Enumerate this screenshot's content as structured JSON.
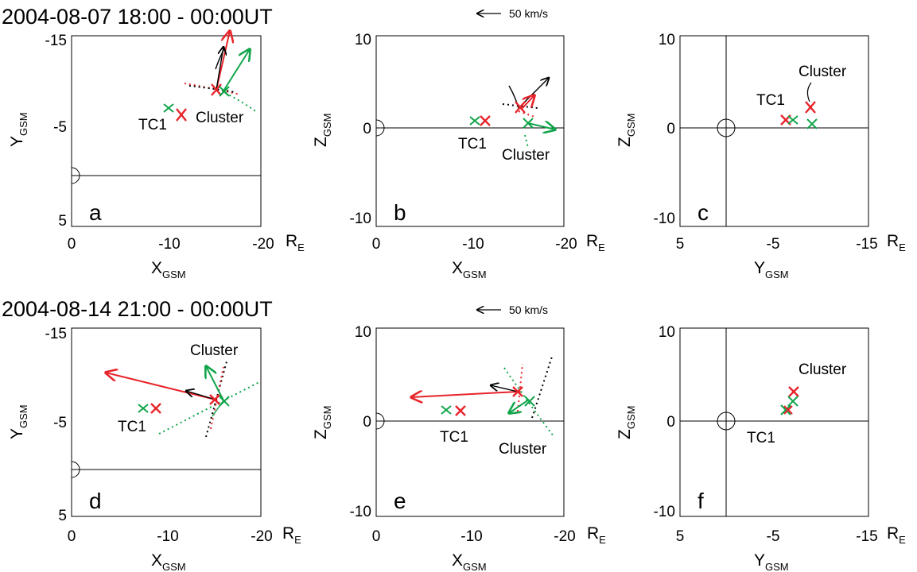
{
  "figure": {
    "rows": [
      {
        "title": "2004-08-07 18:00 - 00:00UT",
        "scale_label": "50 km/s"
      },
      {
        "title": "2004-08-14 21:00 - 00:00UT",
        "scale_label": "50 km/s"
      }
    ],
    "units_label": "R",
    "units_sub": "E",
    "labels": {
      "x_main": "X",
      "y_main": "Y",
      "z_main": "Z",
      "sub": "GSM",
      "tc1": "TC1",
      "cluster": "Cluster"
    },
    "colors": {
      "cluster_red": "#e8242b",
      "cluster_green": "#10a54a",
      "tc1_black": "#000000"
    }
  },
  "chart_data": [
    {
      "panel": "a",
      "type": "scatter",
      "xlabel": "XGSM",
      "ylabel": "YGSM",
      "xlim": [
        0,
        -20
      ],
      "ylim": [
        5,
        -15
      ],
      "xticks": [
        "0",
        "-10",
        "-20"
      ],
      "yticks": [
        "-15",
        "-5",
        "5"
      ],
      "points": [
        {
          "name": "TC1",
          "color": "red",
          "x": -11.5,
          "y": -4.2
        },
        {
          "name": "TC1",
          "color": "green",
          "x": -10.5,
          "y": -5.1
        },
        {
          "name": "Cluster",
          "color": "red",
          "x": -15.3,
          "y": -8.6
        },
        {
          "name": "Cluster",
          "color": "green",
          "x": -16.2,
          "y": -8.4
        }
      ]
    },
    {
      "panel": "b",
      "type": "scatter",
      "xlabel": "XGSM",
      "ylabel": "ZGSM",
      "xlim": [
        0,
        -20
      ],
      "ylim": [
        -10,
        10
      ],
      "xticks": [
        "0",
        "-10",
        "-20"
      ],
      "yticks": [
        "10",
        "0",
        "-10"
      ],
      "points": [
        {
          "name": "TC1",
          "color": "green",
          "x": -10.5,
          "y": 0.8
        },
        {
          "name": "TC1",
          "color": "red",
          "x": -11.5,
          "y": 0.8
        },
        {
          "name": "Cluster",
          "color": "red",
          "x": -15.3,
          "y": 2.2
        },
        {
          "name": "Cluster",
          "color": "green",
          "x": -16.2,
          "y": 0.5
        }
      ]
    },
    {
      "panel": "c",
      "type": "scatter",
      "xlabel": "YGSM",
      "ylabel": "ZGSM",
      "xlim": [
        5,
        -15
      ],
      "ylim": [
        -10,
        10
      ],
      "xticks": [
        "5",
        "-5",
        "-15"
      ],
      "yticks": [
        "10",
        "0",
        "-10"
      ],
      "points": [
        {
          "name": "TC1",
          "color": "red",
          "x": -4.3,
          "y": 0.8
        },
        {
          "name": "TC1",
          "color": "green",
          "x": -5.1,
          "y": 0.8
        },
        {
          "name": "Cluster",
          "color": "red",
          "x": -8.7,
          "y": 2.2
        },
        {
          "name": "Cluster",
          "color": "green",
          "x": -8.5,
          "y": 0.5
        }
      ]
    },
    {
      "panel": "d",
      "type": "scatter",
      "xlabel": "XGSM",
      "ylabel": "YGSM",
      "xlim": [
        0,
        -20
      ],
      "ylim": [
        5,
        -15
      ],
      "xticks": [
        "0",
        "-10",
        "-20"
      ],
      "yticks": [
        "-15",
        "-5",
        "5"
      ],
      "points": [
        {
          "name": "TC1",
          "color": "green",
          "x": -7.6,
          "y": -6.2
        },
        {
          "name": "TC1",
          "color": "red",
          "x": -9.2,
          "y": -6.2
        },
        {
          "name": "Cluster",
          "color": "red",
          "x": -15.2,
          "y": -7.2
        },
        {
          "name": "Cluster",
          "color": "green",
          "x": -16.0,
          "y": -7.1
        }
      ]
    },
    {
      "panel": "e",
      "type": "scatter",
      "xlabel": "XGSM",
      "ylabel": "ZGSM",
      "xlim": [
        0,
        -20
      ],
      "ylim": [
        -10,
        10
      ],
      "xticks": [
        "0",
        "-10",
        "-20"
      ],
      "yticks": [
        "10",
        "0",
        "-10"
      ],
      "points": [
        {
          "name": "TC1",
          "color": "green",
          "x": -7.6,
          "y": 1.3
        },
        {
          "name": "TC1",
          "color": "red",
          "x": -9.2,
          "y": 1.2
        },
        {
          "name": "Cluster",
          "color": "red",
          "x": -15.2,
          "y": 3.1
        },
        {
          "name": "Cluster",
          "color": "green",
          "x": -16.0,
          "y": 2.2
        }
      ]
    },
    {
      "panel": "f",
      "type": "scatter",
      "xlabel": "YGSM",
      "ylabel": "ZGSM",
      "xlim": [
        5,
        -15
      ],
      "ylim": [
        -10,
        10
      ],
      "xticks": [
        "5",
        "-5",
        "-15"
      ],
      "yticks": [
        "10",
        "0",
        "-10"
      ],
      "points": [
        {
          "name": "TC1",
          "color": "green",
          "x": -6.2,
          "y": 1.3
        },
        {
          "name": "TC1",
          "color": "red",
          "x": -6.2,
          "y": 1.2
        },
        {
          "name": "Cluster",
          "color": "red",
          "x": -7.2,
          "y": 3.1
        },
        {
          "name": "Cluster",
          "color": "green",
          "x": -7.1,
          "y": 2.2
        }
      ]
    }
  ]
}
